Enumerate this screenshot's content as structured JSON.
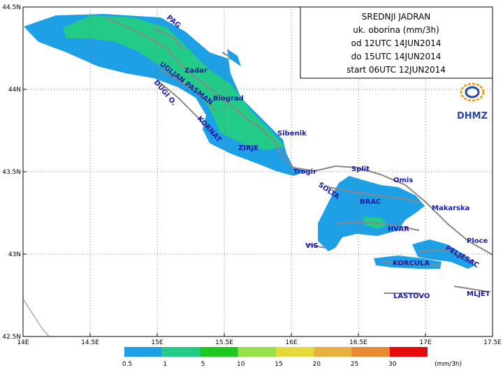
{
  "title": {
    "lines": [
      "SREDNJI JADRAN",
      "uk. oborina (mm/3h)",
      "od 12UTC 14JUN2014",
      "do 15UTC 14JUN2014",
      "start 06UTC 12JUN2014"
    ]
  },
  "logo": "DHMZ",
  "axes": {
    "lon_labels": [
      "14E",
      "14.5E",
      "15E",
      "15.5E",
      "16E",
      "16.5E",
      "17E",
      "17.5E"
    ],
    "lat_labels": [
      "44.5N",
      "44N",
      "43.5N",
      "43N",
      "42.5N"
    ]
  },
  "places": [
    "PAG",
    "Zadar",
    "UGLJAN PASMAN",
    "Biograd",
    "DUGI O.",
    "KORNAT",
    "ZIRJE",
    "Sibenik",
    "Trogir",
    "Split",
    "Omis",
    "SOLTA",
    "BRAC",
    "Makarska",
    "HVAR",
    "VIS",
    "Ploce",
    "KORCULA",
    "PELJESAC",
    "LASTOVO",
    "MLJET"
  ],
  "legend": {
    "labels": [
      "0.5",
      "1",
      "5",
      "10",
      "15",
      "20",
      "25",
      "30"
    ],
    "colors": [
      "#1ea0e6",
      "#22cc88",
      "#1ec81e",
      "#96e04a",
      "#e6d83c",
      "#e8b040",
      "#e88a32",
      "#e60a0a"
    ],
    "unit": "(mm/3h)"
  }
}
